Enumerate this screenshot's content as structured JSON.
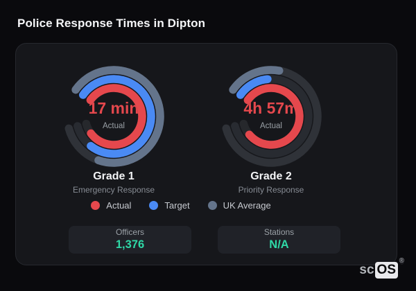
{
  "page": {
    "title": "Police Response Times in Dipton"
  },
  "brand": {
    "prefix": "sc",
    "suffix": "OS",
    "registered": "®"
  },
  "legend": {
    "position": "bottom-center",
    "items": [
      {
        "label": "Actual",
        "color": "#e5484d"
      },
      {
        "label": "Target",
        "color": "#4a8af4"
      },
      {
        "label": "UK Average",
        "color": "#64748b"
      }
    ]
  },
  "stats": [
    {
      "label": "Officers",
      "value": "1,376",
      "value_color": "#2fd8a6"
    },
    {
      "label": "Stations",
      "value": "N/A",
      "value_color": "#2fd8a6"
    }
  ],
  "chart_data": [
    {
      "type": "radial-gauge",
      "title": "Grade 1",
      "subtitle": "Emergency Response",
      "center_value": "17 min",
      "center_label": "Actual",
      "start_angle_deg": 305,
      "range_deg": 310,
      "stroke_width": 11.5,
      "series": [
        {
          "name": "Actual",
          "color": "#e5484d",
          "track_color": "#26282c",
          "radius": 41,
          "fraction": 0.93
        },
        {
          "name": "Target",
          "color": "#4a8af4",
          "track_color": "#282b31",
          "radius": 54,
          "fraction": 0.88
        },
        {
          "name": "UK Average",
          "color": "#64748b",
          "track_color": "#2f3238",
          "radius": 67,
          "fraction": 0.82
        }
      ]
    },
    {
      "type": "radial-gauge",
      "title": "Grade 2",
      "subtitle": "Priority Response",
      "center_value": "4h 57m",
      "center_label": "Actual",
      "start_angle_deg": 305,
      "range_deg": 310,
      "stroke_width": 11.5,
      "series": [
        {
          "name": "Actual",
          "color": "#e5484d",
          "track_color": "#26282c",
          "radius": 41,
          "fraction": 0.92
        },
        {
          "name": "Target",
          "color": "#4a8af4",
          "track_color": "#282b31",
          "radius": 54,
          "fraction": 0.16
        },
        {
          "name": "UK Average",
          "color": "#64748b",
          "track_color": "#2f3238",
          "radius": 67,
          "fraction": 0.21
        }
      ]
    }
  ]
}
